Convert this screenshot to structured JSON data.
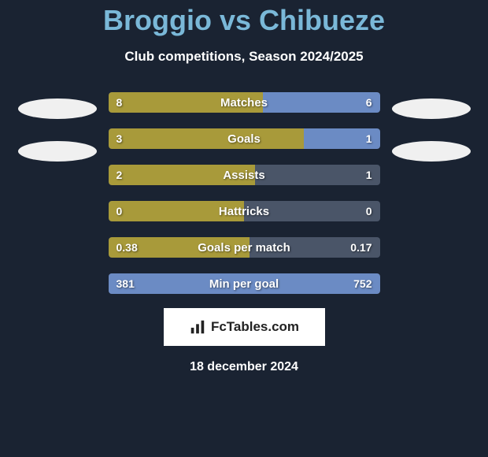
{
  "title": "Broggio vs Chibueze",
  "subtitle": "Club competitions, Season 2024/2025",
  "date": "18 december 2024",
  "logo_text": "FcTables.com",
  "colors": {
    "background": "#1a2332",
    "title_color": "#7ab8d8",
    "left_fill": "#a89a3a",
    "right_fill": "#6b8bc4",
    "ellipse": "#f0f0f0",
    "bar_bg": "#4a5568"
  },
  "stats": [
    {
      "label": "Matches",
      "left_value": "8",
      "right_value": "6",
      "left_pct": 57,
      "right_pct": 43
    },
    {
      "label": "Goals",
      "left_value": "3",
      "right_value": "1",
      "left_pct": 72,
      "right_pct": 28
    },
    {
      "label": "Assists",
      "left_value": "2",
      "right_value": "1",
      "left_pct": 54,
      "right_pct": 0
    },
    {
      "label": "Hattricks",
      "left_value": "0",
      "right_value": "0",
      "left_pct": 50,
      "right_pct": 0
    },
    {
      "label": "Goals per match",
      "left_value": "0.38",
      "right_value": "0.17",
      "left_pct": 52,
      "right_pct": 0
    },
    {
      "label": "Min per goal",
      "left_value": "381",
      "right_value": "752",
      "left_pct": 0,
      "right_pct": 100
    }
  ]
}
